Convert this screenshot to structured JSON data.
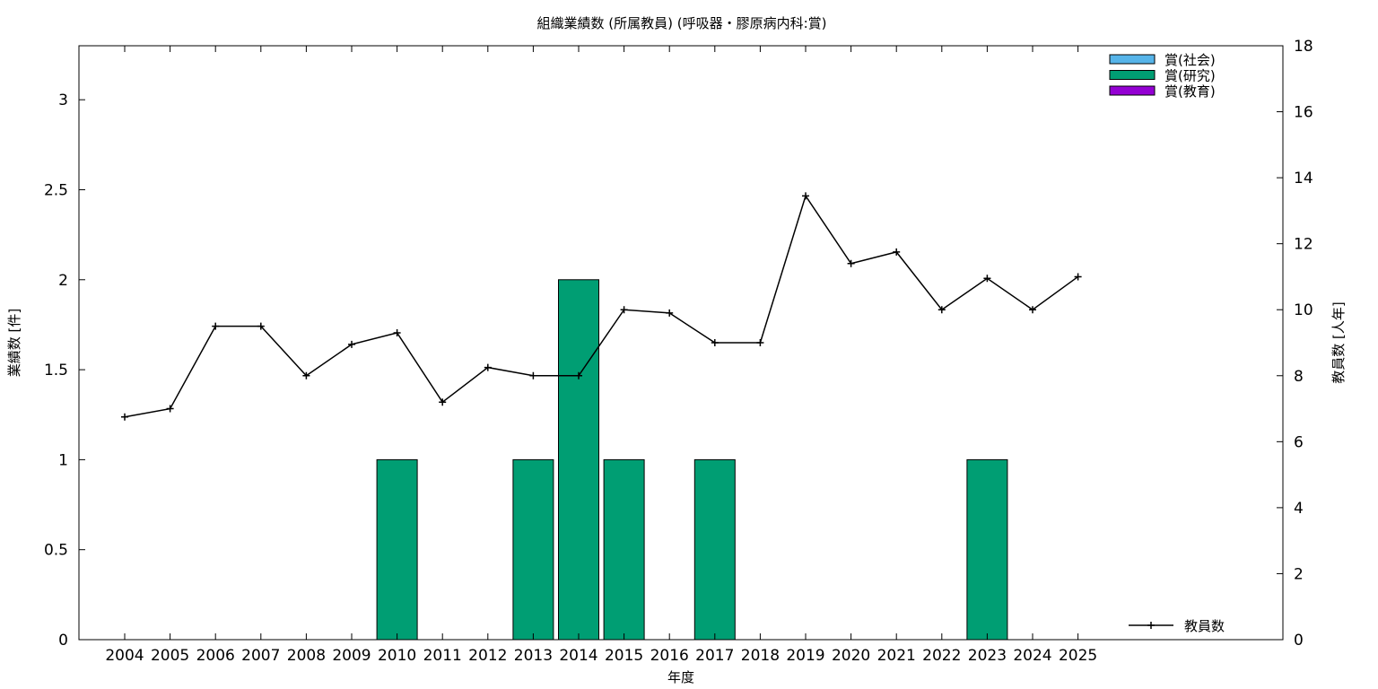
{
  "chart_data": {
    "type": "bar",
    "title": "組織業績数 (所属教員) (呼吸器・膠原病内科:賞)",
    "xlabel": "年度",
    "ylabel": "業績数 [件]",
    "y2label": "教員数 [人年]",
    "categories": [
      "2004",
      "2005",
      "2006",
      "2007",
      "2008",
      "2009",
      "2010",
      "2011",
      "2012",
      "2013",
      "2014",
      "2015",
      "2016",
      "2017",
      "2018",
      "2019",
      "2020",
      "2021",
      "2022",
      "2023",
      "2024",
      "2025"
    ],
    "series": [
      {
        "name": "賞(社会)",
        "color": "#56b4e9",
        "values": [
          0,
          0,
          0,
          0,
          0,
          0,
          0,
          0,
          0,
          0,
          0,
          0,
          0,
          0,
          0,
          0,
          0,
          0,
          0,
          0,
          0,
          0
        ]
      },
      {
        "name": "賞(研究)",
        "color": "#009e73",
        "values": [
          0,
          0,
          0,
          0,
          0,
          0,
          1,
          0,
          0,
          1,
          2,
          1,
          0,
          1,
          0,
          0,
          0,
          0,
          0,
          1,
          0,
          0
        ]
      },
      {
        "name": "賞(教育)",
        "color": "#9400d3",
        "values": [
          0,
          0,
          0,
          0,
          0,
          0,
          0,
          0,
          0,
          0,
          0,
          0,
          0,
          0,
          0,
          0,
          0,
          0,
          0,
          0,
          0,
          0
        ]
      }
    ],
    "line_series": {
      "name": "教員数",
      "color": "#000000",
      "values": [
        6.75,
        7.0,
        9.5,
        9.5,
        8.0,
        8.95,
        9.3,
        7.2,
        8.25,
        8.0,
        8.0,
        10.0,
        9.9,
        9.0,
        9.0,
        13.45,
        11.4,
        11.75,
        10.0,
        10.95,
        10.0,
        11.0
      ]
    },
    "ylim": [
      0,
      3.3
    ],
    "y2lim": [
      0,
      18
    ],
    "yticks": [
      "0",
      "0.5",
      "1",
      "1.5",
      "2",
      "2.5",
      "3"
    ],
    "y2ticks": [
      "0",
      "2",
      "4",
      "6",
      "8",
      "10",
      "12",
      "14",
      "16",
      "18"
    ],
    "grid": false,
    "legend_position": "top-right"
  }
}
